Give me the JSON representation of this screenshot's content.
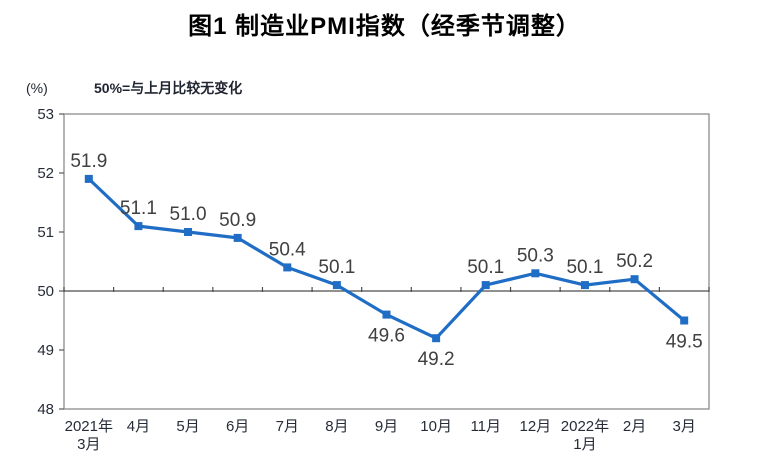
{
  "page": {
    "title": "图1 制造业PMI指数（经季节调整）"
  },
  "chart": {
    "unit_label": "(%)",
    "annotation": "50%=与上月比较无变化"
  },
  "chart_data": {
    "type": "line",
    "title": "图1 制造业PMI指数（经季节调整）",
    "categories": [
      "2021年\n3月",
      "4月",
      "5月",
      "6月",
      "7月",
      "8月",
      "9月",
      "10月",
      "11月",
      "12月",
      "2022年\n1月",
      "2月",
      "3月"
    ],
    "values": [
      51.9,
      51.1,
      51.0,
      50.9,
      50.4,
      50.1,
      49.6,
      49.2,
      50.1,
      50.3,
      50.1,
      50.2,
      49.5
    ],
    "label_placement": [
      "above",
      "above",
      "above",
      "above",
      "above",
      "above",
      "below",
      "below",
      "above",
      "above",
      "above",
      "above",
      "below"
    ],
    "ylabel": "(%)",
    "xlabel": "",
    "ylim": [
      48,
      53
    ],
    "yticks": [
      48,
      49,
      50,
      51,
      52,
      53
    ],
    "reference_line": 50,
    "grid": false,
    "legend": false,
    "marker": "square",
    "series_color": "#1f6dc4",
    "axis_color": "#8c8c8c",
    "reference_line_color": "#4d4d4d",
    "data_label_color": "#404040"
  }
}
